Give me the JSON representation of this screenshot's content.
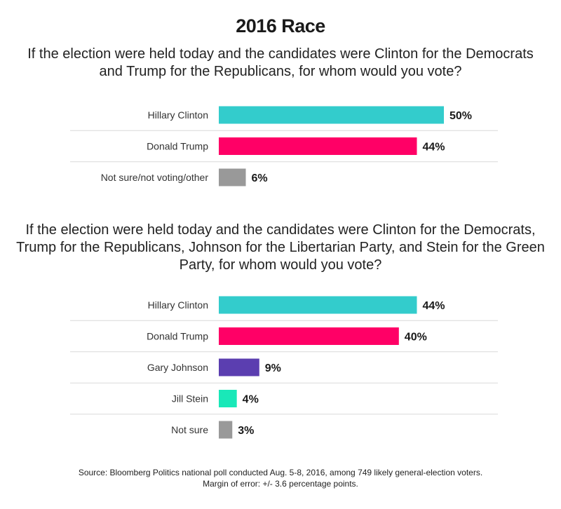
{
  "title": "2016 Race",
  "colors": {
    "clinton": "#33cccc",
    "trump": "#ff0066",
    "johnson": "#5b3eb0",
    "stein": "#19e8b8",
    "other": "#999999",
    "text": "#1a1a1a",
    "rule": "#d9d9d9"
  },
  "chart_data": [
    {
      "type": "bar",
      "orientation": "horizontal",
      "title": "If the election were held today and the candidates were Clinton for the Democrats and Trump for the Republicans, for whom would you vote?",
      "categories": [
        "Hillary Clinton",
        "Donald Trump",
        "Not sure/not voting/other"
      ],
      "values": [
        50,
        44,
        6
      ],
      "value_labels": [
        "50%",
        "44%",
        "6%"
      ],
      "bar_colors": [
        "#33cccc",
        "#ff0066",
        "#999999"
      ],
      "unit": "%",
      "grid": false,
      "legend": "none"
    },
    {
      "type": "bar",
      "orientation": "horizontal",
      "title": "If the election were held today and the candidates were Clinton for the Democrats, Trump for the Republicans, Johnson for the Libertarian Party, and Stein for the Green Party, for whom would you vote?",
      "categories": [
        "Hillary Clinton",
        "Donald Trump",
        "Gary Johnson",
        "Jill Stein",
        "Not sure"
      ],
      "values": [
        44,
        40,
        9,
        4,
        3
      ],
      "value_labels": [
        "44%",
        "40%",
        "9%",
        "4%",
        "3%"
      ],
      "bar_colors": [
        "#33cccc",
        "#ff0066",
        "#5b3eb0",
        "#19e8b8",
        "#999999"
      ],
      "unit": "%",
      "grid": false,
      "legend": "none"
    }
  ],
  "source": {
    "line1": "Source: Bloomberg Politics national poll conducted Aug. 5-8, 2016, among 749 likely general-election voters.",
    "line2": "Margin of error: +/- 3.6 percentage points."
  }
}
